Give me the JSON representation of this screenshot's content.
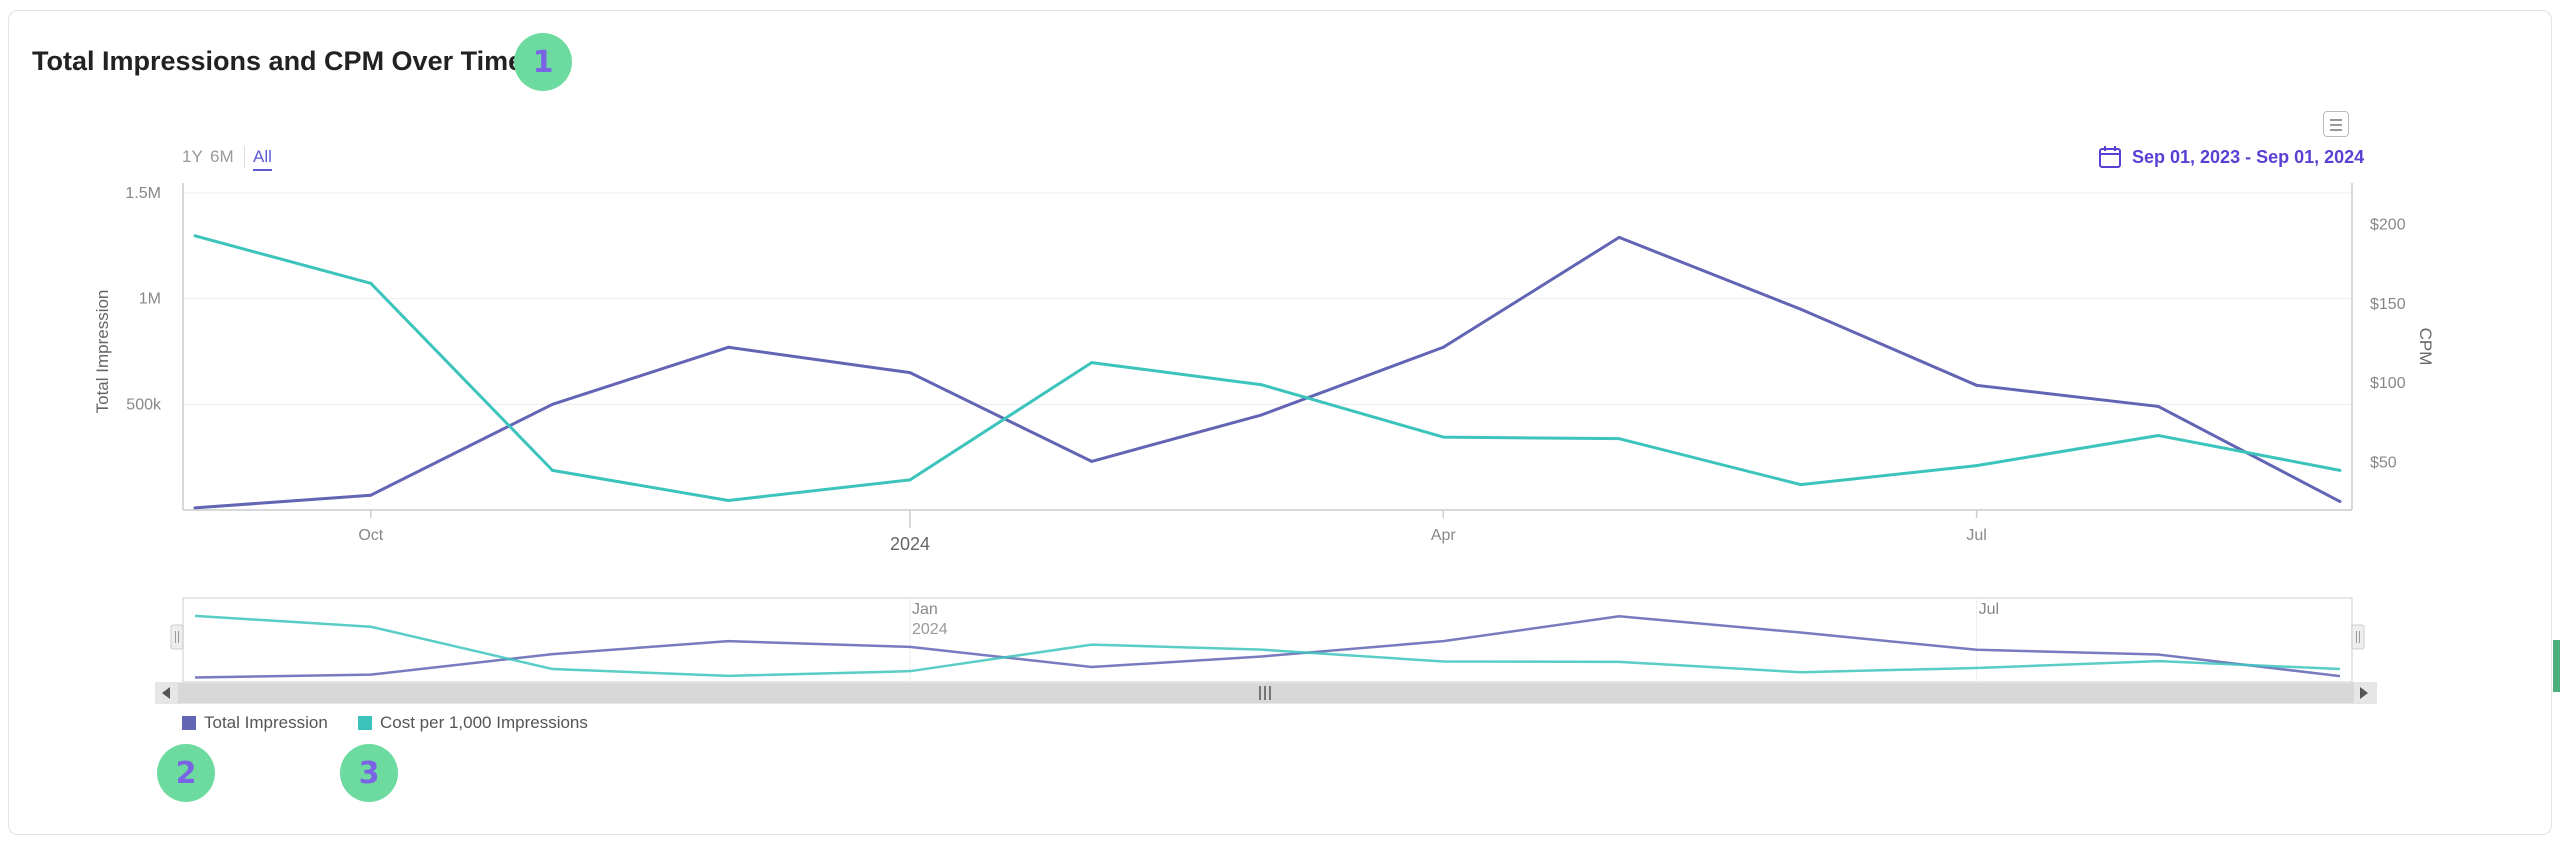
{
  "title": "Total Impressions and CPM Over Time",
  "markers": [
    "1",
    "2",
    "3"
  ],
  "zoom_buttons": [
    "1Y",
    "6M",
    "All"
  ],
  "date_range": "Sep 01, 2023 - Sep 01, 2024",
  "icons": {
    "export_menu": "hamburger-menu-icon",
    "calendar": "calendar-icon",
    "scroll_left": "triangle-left-icon",
    "scroll_right": "triangle-right-icon",
    "scroll_grip": "grip-icon"
  },
  "colors": {
    "impressions": "#6264b4",
    "cpm": "#3cc4bc",
    "accent": "#5b3fd4",
    "marker_bg": "#6ddb9f"
  },
  "chart_data": {
    "type": "line",
    "title": "Total Impressions and CPM Over Time",
    "x": [
      "2023-09-01",
      "2023-10-01",
      "2023-11-01",
      "2023-12-01",
      "2024-01-01",
      "2024-02-01",
      "2024-03-01",
      "2024-04-01",
      "2024-05-01",
      "2024-06-01",
      "2024-07-01",
      "2024-08-01",
      "2024-09-01"
    ],
    "series": [
      {
        "name": "Total Impression",
        "axis": "left",
        "color": "#6264b4",
        "values": [
          10000,
          70000,
          500000,
          770000,
          650000,
          230000,
          450000,
          770000,
          1290000,
          950000,
          590000,
          490000,
          40000
        ]
      },
      {
        "name": "Cost per 1,000 Impressions",
        "axis": "right",
        "color": "#3cc4bc",
        "values": [
          193,
          163,
          45,
          26,
          39,
          113,
          99,
          66,
          65,
          36,
          48,
          67,
          45
        ]
      }
    ],
    "ylabel": "Total Impression",
    "y2label": "CPM",
    "y_ticks": [
      {
        "v": 500000,
        "label": "500k"
      },
      {
        "v": 1000000,
        "label": "1M"
      },
      {
        "v": 1500000,
        "label": "1.5M"
      }
    ],
    "y2_ticks": [
      {
        "v": 50,
        "label": "$50"
      },
      {
        "v": 100,
        "label": "$100"
      },
      {
        "v": 150,
        "label": "$150"
      },
      {
        "v": 200,
        "label": "$200"
      }
    ],
    "x_ticks": [
      {
        "date": "2023-10-01",
        "label": "Oct",
        "major": false
      },
      {
        "date": "2024-01-01",
        "label": "2024",
        "major": true
      },
      {
        "date": "2024-04-01",
        "label": "Apr",
        "major": false
      },
      {
        "date": "2024-07-01",
        "label": "Jul",
        "major": false
      }
    ],
    "navigator_labels": [
      {
        "date": "2024-01-01",
        "label": "Jan",
        "sub": "2024"
      },
      {
        "date": "2024-07-01",
        "label": "Jul",
        "sub": ""
      }
    ],
    "ylim": [
      0,
      1500000
    ],
    "y2lim": [
      20,
      220
    ],
    "legend": [
      "Total Impression",
      "Cost per 1,000 Impressions"
    ],
    "legend_position": "bottom-left",
    "grid": true
  }
}
